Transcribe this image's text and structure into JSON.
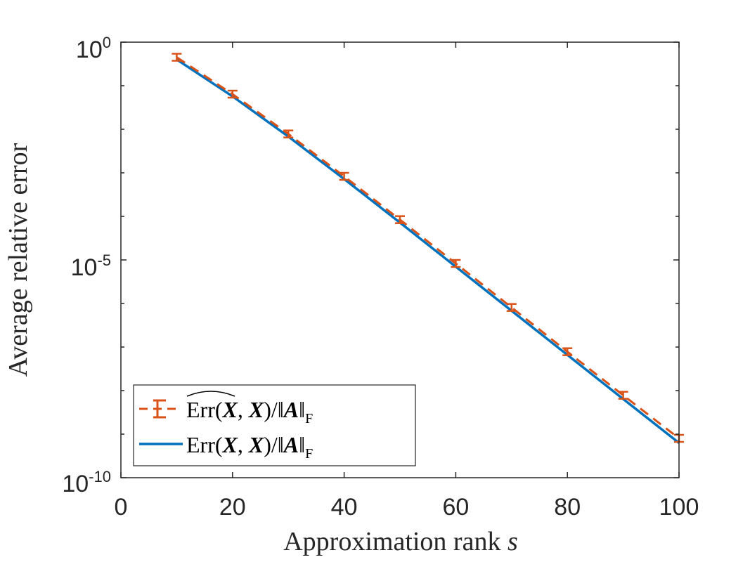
{
  "chart_data": {
    "type": "line",
    "xlabel": "Approximation rank s",
    "ylabel": "Average relative error",
    "xlim": [
      0,
      100
    ],
    "ylim": [
      1e-10,
      1
    ],
    "yscale": "log",
    "x_ticks": [
      "0",
      "20",
      "40",
      "60",
      "80",
      "100"
    ],
    "y_ticks": [
      {
        "base": "10",
        "exp": "0"
      },
      {
        "base": "10",
        "exp": "-5"
      },
      {
        "base": "10",
        "exp": "-10"
      }
    ],
    "grid": false,
    "legend_position": "bottom-left",
    "x": [
      10,
      20,
      30,
      40,
      50,
      60,
      70,
      80,
      90,
      100
    ],
    "series": [
      {
        "name": "Err^(X, X)/‖A‖F",
        "style": "dashed with error bars",
        "color": "#D95319",
        "values": [
          0.45,
          0.064,
          0.0078,
          0.00083,
          8.4e-05,
          8.3e-06,
          8.1e-07,
          7.8e-08,
          7.8e-09,
          8e-10
        ]
      },
      {
        "name": "Err(X, X)/‖A‖F",
        "style": "solid",
        "color": "#0072BD",
        "values": [
          0.4,
          0.057,
          0.0068,
          0.00072,
          7.2e-05,
          7e-06,
          6.8e-07,
          6.6e-08,
          6.4e-09,
          6.3e-10
        ]
      }
    ]
  }
}
